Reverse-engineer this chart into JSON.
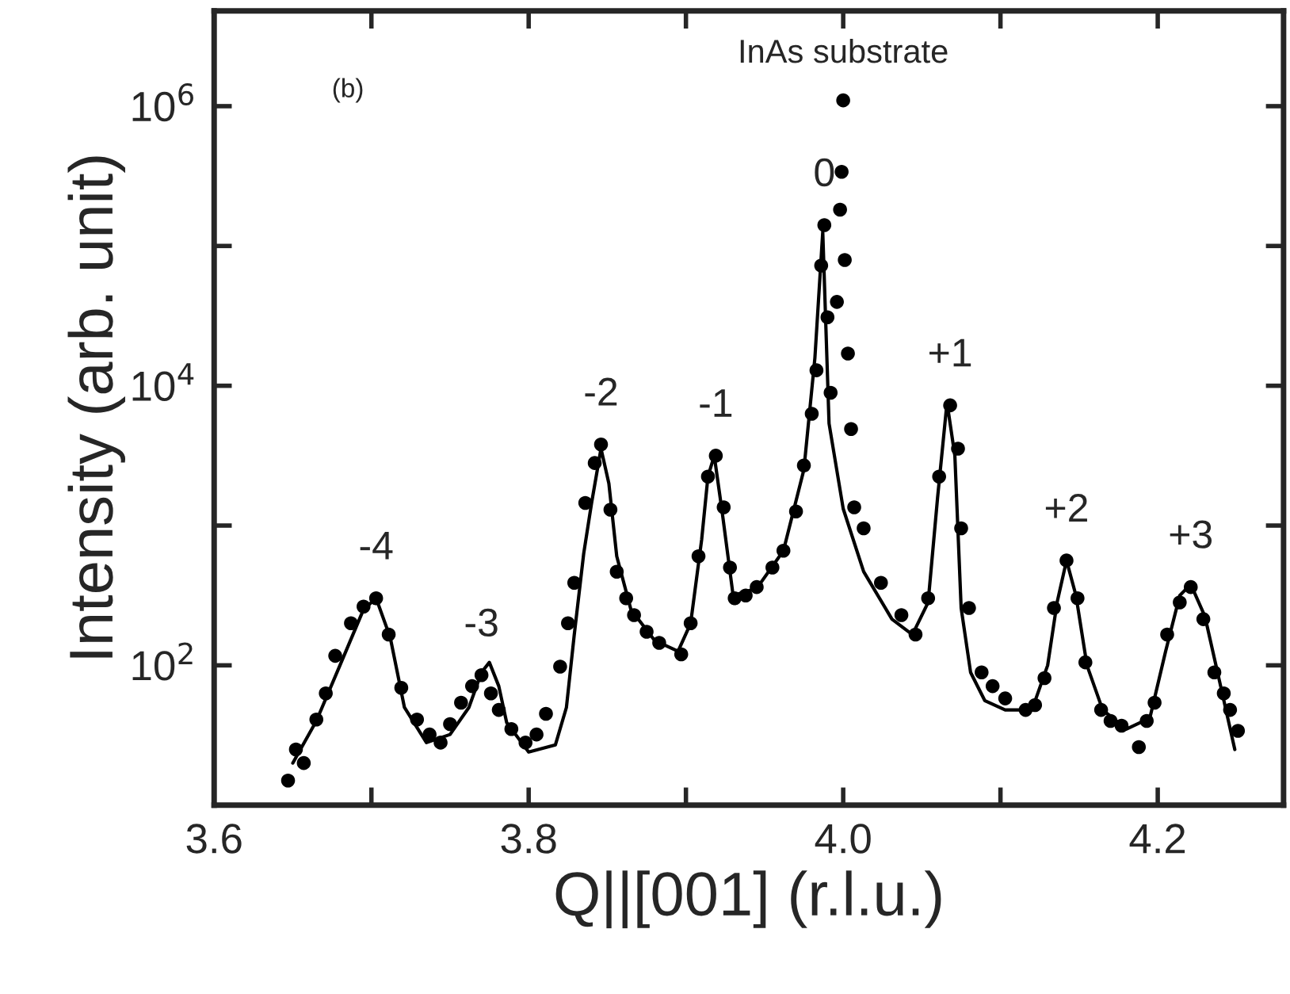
{
  "chart_data": {
    "type": "scatter",
    "xlabel": "Q||[001] (r.l.u.)",
    "ylabel": "Intensity (arb. unit)",
    "log": "y",
    "grid": false,
    "legend": false,
    "xlim": [
      3.6,
      4.28
    ],
    "ylim": [
      10,
      4800000
    ],
    "xticks": [
      3.6,
      {
        "value": 3.7,
        "label": null
      },
      3.8,
      {
        "value": 3.9,
        "label": null
      },
      {
        "value": 4.0,
        "label": "4.0"
      },
      {
        "value": 4.1,
        "label": null
      },
      4.2
    ],
    "yticks": [
      {
        "value": 10,
        "label": null
      },
      {
        "value": 100,
        "label": "10$^{2}$"
      },
      {
        "value": 1000,
        "label": null
      },
      {
        "value": 10000,
        "label": "10$^{4}$"
      },
      {
        "value": 100000,
        "label": null
      },
      {
        "value": 1000000,
        "label": "10$^{6}$"
      }
    ],
    "annotations": [
      "(b)",
      {
        "text": "InAs substrate",
        "x": 4.0,
        "y": 1100000
      },
      {
        "text": "-4",
        "x": 3.703,
        "y": 302
      },
      {
        "text": "-3",
        "x": 3.77,
        "y": 85
      },
      {
        "text": "-2",
        "x": 3.846,
        "y": 3800
      },
      {
        "text": "-1",
        "x": 3.919,
        "y": 3160
      },
      {
        "text": "0",
        "x": 3.988,
        "y": 141000
      },
      {
        "text": "+1",
        "x": 4.068,
        "y": 7240
      },
      {
        "text": "+2",
        "x": 4.142,
        "y": 562
      },
      {
        "text": "+3",
        "x": 4.221,
        "y": 363
      }
    ],
    "series": [
      {
        "marker": "circle",
        "color": "#000000",
        "x": [
          3.647,
          3.652,
          3.657,
          3.665,
          3.671,
          3.677,
          3.687,
          3.695,
          3.703,
          3.711,
          3.719,
          3.729,
          3.737,
          3.744,
          3.75,
          3.757,
          3.764,
          3.77,
          3.776,
          3.781,
          3.789,
          3.798,
          3.805,
          3.811,
          3.82,
          3.825,
          3.829,
          3.836,
          3.842,
          3.846,
          3.852,
          3.856,
          3.862,
          3.867,
          3.875,
          3.883,
          3.897,
          3.903,
          3.908,
          3.914,
          3.919,
          3.924,
          3.928,
          3.931,
          3.938,
          3.945,
          3.955,
          3.962,
          3.97,
          3.975,
          3.98,
          3.983,
          3.986,
          3.988,
          3.99,
          3.992,
          3.996,
          3.998,
          3.999,
          4.0,
          4.001,
          4.003,
          4.005,
          4.007,
          4.013,
          4.024,
          4.037,
          4.046,
          4.054,
          4.061,
          4.068,
          4.073,
          4.075,
          4.08,
          4.088,
          4.095,
          4.103,
          4.116,
          4.122,
          4.128,
          4.134,
          4.142,
          4.149,
          4.154,
          4.164,
          4.17,
          4.177,
          4.188,
          4.193,
          4.198,
          4.206,
          4.214,
          4.221,
          4.229,
          4.236,
          4.242,
          4.246,
          4.251
        ],
        "values": [
          15,
          25,
          20,
          41,
          63,
          117,
          200,
          263,
          302,
          166,
          69,
          41,
          32,
          28,
          38,
          54,
          71,
          85,
          63,
          48,
          35,
          28,
          32,
          45,
          98,
          200,
          389,
          1450,
          2800,
          3800,
          1300,
          468,
          302,
          229,
          174,
          145,
          120,
          200,
          603,
          2240,
          3160,
          1350,
          501,
          302,
          316,
          363,
          501,
          661,
          1260,
          2690,
          6310,
          12900,
          72400,
          141000,
          30900,
          8910,
          39800,
          182000,
          339000,
          1100000,
          79400,
          17000,
          4900,
          1350,
          955,
          389,
          229,
          166,
          302,
          2240,
          7240,
          3550,
          955,
          257,
          89,
          71,
          58,
          48,
          52,
          81,
          257,
          562,
          302,
          105,
          48,
          40,
          37,
          26,
          40,
          54,
          166,
          282,
          363,
          214,
          89,
          63,
          48,
          34
        ]
      },
      {
        "type": "line",
        "marker": "none",
        "line_style": "solid",
        "color": "#000000",
        "x": [
          3.65,
          3.665,
          3.68,
          3.695,
          3.703,
          3.712,
          3.721,
          3.735,
          3.75,
          3.762,
          3.77,
          3.775,
          3.781,
          3.786,
          3.8,
          3.817,
          3.824,
          3.829,
          3.835,
          3.84,
          3.846,
          3.851,
          3.856,
          3.865,
          3.88,
          3.895,
          3.903,
          3.91,
          3.914,
          3.918,
          3.923,
          3.93,
          3.945,
          3.962,
          3.975,
          3.982,
          3.987,
          3.991,
          4.0,
          4.013,
          4.031,
          4.044,
          4.054,
          4.06,
          4.066,
          4.071,
          4.075,
          4.081,
          4.09,
          4.103,
          4.12,
          4.13,
          4.136,
          4.142,
          4.148,
          4.155,
          4.165,
          4.18,
          4.195,
          4.205,
          4.214,
          4.221,
          4.23,
          4.24,
          4.249
        ],
        "values": [
          20,
          40,
          100,
          251,
          302,
          158,
          50,
          28,
          32,
          50,
          89,
          105,
          71,
          39,
          24,
          27,
          50,
          166,
          631,
          1450,
          3550,
          2000,
          603,
          251,
          151,
          126,
          200,
          794,
          2240,
          3160,
          1260,
          316,
          355,
          661,
          2510,
          15800,
          126000,
          5370,
          1320,
          468,
          214,
          166,
          282,
          1580,
          7590,
          3160,
          257,
          89,
          56,
          48,
          48,
          100,
          282,
          562,
          316,
          100,
          48,
          35,
          42,
          126,
          316,
          380,
          224,
          71,
          25
        ]
      }
    ]
  }
}
